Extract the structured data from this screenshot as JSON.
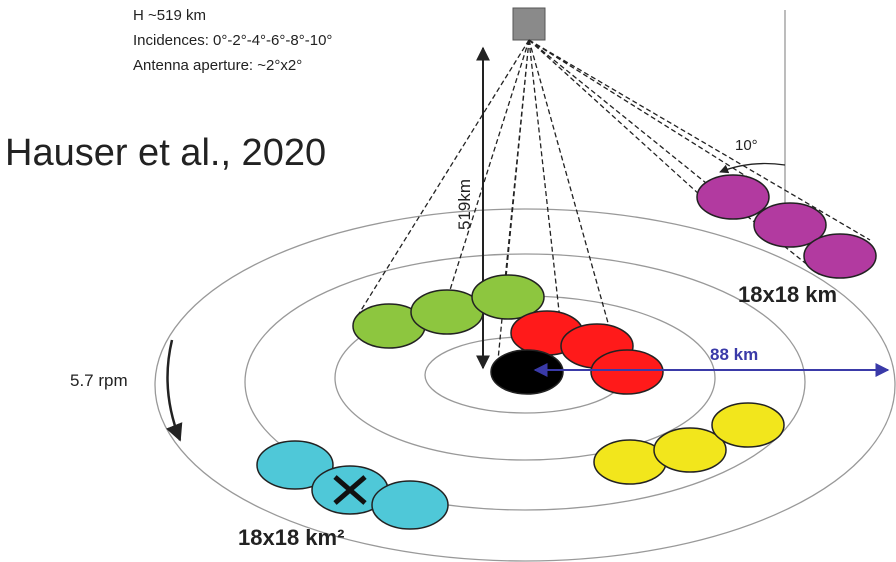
{
  "header": {
    "altitude": "H ~519 km",
    "incidences": "Incidences: 0°-2°-4°-6°-8°-10°",
    "aperture": "Antenna aperture: ~2°x2°"
  },
  "citation": "Hauser et al., 2020",
  "labels": {
    "height": "519km",
    "angle": "10°",
    "footprint_top": "18x18 km",
    "range": "88 km",
    "rotation": "5.7 rpm",
    "footprint_bottom": "18x18 km²"
  }
}
